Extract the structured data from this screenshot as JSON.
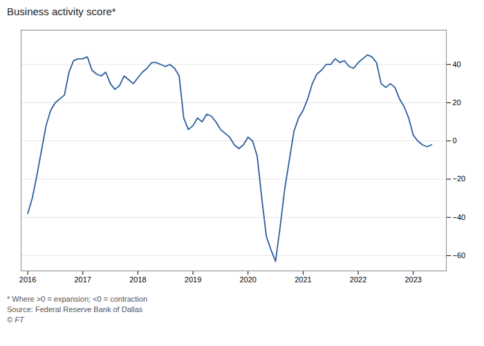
{
  "chart_data": {
    "type": "line",
    "title": "Business activity score*",
    "annotations": [
      "* Where >0 = expansion; <0 = contraction",
      "Source: Federal Reserve Bank of Dallas",
      "© FT"
    ],
    "color": "#2a5f9e",
    "grid": true,
    "xlim": [
      2015.88,
      2023.6
    ],
    "xticks": [
      2016,
      2017,
      2018,
      2019,
      2020,
      2021,
      2022,
      2023
    ],
    "ylim": [
      -68,
      58
    ],
    "yticks": [
      {
        "value": -60,
        "label": "−60"
      },
      {
        "value": -40,
        "label": "−40"
      },
      {
        "value": -20,
        "label": "−20"
      },
      0,
      20,
      40
    ],
    "x": [
      2016.0,
      2016.083,
      2016.167,
      2016.25,
      2016.333,
      2016.417,
      2016.5,
      2016.583,
      2016.667,
      2016.75,
      2016.833,
      2016.917,
      2017.0,
      2017.083,
      2017.167,
      2017.25,
      2017.333,
      2017.417,
      2017.5,
      2017.583,
      2017.667,
      2017.75,
      2017.833,
      2017.917,
      2018.0,
      2018.083,
      2018.167,
      2018.25,
      2018.333,
      2018.417,
      2018.5,
      2018.583,
      2018.667,
      2018.75,
      2018.833,
      2018.917,
      2019.0,
      2019.083,
      2019.167,
      2019.25,
      2019.333,
      2019.417,
      2019.5,
      2019.583,
      2019.667,
      2019.75,
      2019.833,
      2019.917,
      2020.0,
      2020.083,
      2020.167,
      2020.25,
      2020.333,
      2020.417,
      2020.5,
      2020.583,
      2020.667,
      2020.75,
      2020.833,
      2020.917,
      2021.0,
      2021.083,
      2021.167,
      2021.25,
      2021.333,
      2021.417,
      2021.5,
      2021.583,
      2021.667,
      2021.75,
      2021.833,
      2021.917,
      2022.0,
      2022.083,
      2022.167,
      2022.25,
      2022.333,
      2022.417,
      2022.5,
      2022.583,
      2022.667,
      2022.75,
      2022.833,
      2022.917,
      2023.0,
      2023.083,
      2023.167,
      2023.25,
      2023.333
    ],
    "values": [
      -38,
      -30,
      -18,
      -5,
      8,
      16,
      20,
      22,
      24,
      36,
      42,
      43,
      43,
      44,
      37,
      35,
      34,
      36,
      30,
      27,
      29,
      34,
      32,
      30,
      33,
      36,
      38,
      41,
      41,
      40,
      39,
      40,
      38,
      34,
      12,
      6,
      8,
      12,
      10,
      14,
      13,
      10,
      6,
      4,
      2,
      -2,
      -4,
      -2,
      2,
      0,
      -8,
      -30,
      -50,
      -57,
      -63,
      -45,
      -25,
      -10,
      5,
      12,
      16,
      22,
      30,
      35,
      37,
      40,
      40,
      43,
      41,
      42,
      39,
      38,
      41,
      43,
      45,
      44,
      41,
      30,
      28,
      30,
      28,
      22,
      18,
      12,
      3,
      0,
      -2,
      -3,
      -2
    ]
  }
}
